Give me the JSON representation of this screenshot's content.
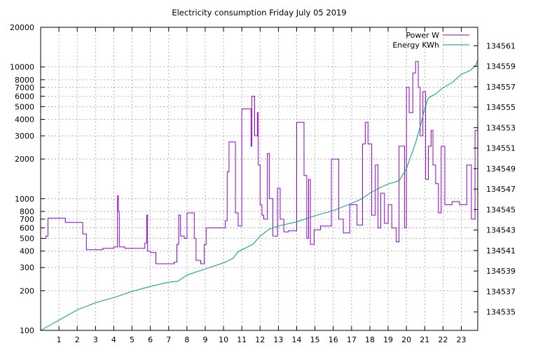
{
  "chart_data": {
    "type": "line",
    "title": "Electricity consumption Friday July 05 2019",
    "xlabel": "",
    "ylabel": "",
    "y2label": "",
    "x_ticks": [
      "1",
      "2",
      "3",
      "4",
      "5",
      "6",
      "7",
      "8",
      "9",
      "10",
      "11",
      "12",
      "13",
      "14",
      "15",
      "16",
      "17",
      "18",
      "19",
      "20",
      "21",
      "22",
      "23"
    ],
    "xlim": [
      0,
      23.9
    ],
    "y_scale": "log",
    "y_ticks": [
      "100",
      "200",
      "300",
      "400",
      "500",
      "600",
      "700",
      "800",
      "1000",
      "2000",
      "3000",
      "4000",
      "5000",
      "6000",
      "7000",
      "8000",
      "10000",
      "20000"
    ],
    "ylim": [
      100,
      20000
    ],
    "y2_ticks": [
      "134535",
      "134537",
      "134539",
      "134541",
      "134543",
      "134545",
      "134547",
      "134549",
      "134551",
      "134553",
      "134555",
      "134557",
      "134559",
      "134561"
    ],
    "y2lim": [
      134533.2,
      134562.8
    ],
    "grid": true,
    "legend_position": "top-right",
    "series": [
      {
        "name": "Power W",
        "axis": "y",
        "color": "#9400d3",
        "x": [
          0,
          0.3,
          0.3,
          0.4,
          0.4,
          1.35,
          1.35,
          2.3,
          2.3,
          2.5,
          2.5,
          3.4,
          3.4,
          4.0,
          4.0,
          4.2,
          4.2,
          4.25,
          4.25,
          4.3,
          4.3,
          4.6,
          4.6,
          5.7,
          5.7,
          5.8,
          5.8,
          5.85,
          5.85,
          6.0,
          6.0,
          6.3,
          6.3,
          7.3,
          7.3,
          7.45,
          7.45,
          7.55,
          7.55,
          7.65,
          7.65,
          7.85,
          7.85,
          8.0,
          8.0,
          8.4,
          8.4,
          8.5,
          8.5,
          8.75,
          8.75,
          8.95,
          8.95,
          9.05,
          9.05,
          10.1,
          10.1,
          10.2,
          10.2,
          10.3,
          10.3,
          10.65,
          10.65,
          10.8,
          10.8,
          11.0,
          11.0,
          11.5,
          11.5,
          11.55,
          11.55,
          11.7,
          11.7,
          11.85,
          11.85,
          11.9,
          11.9,
          12.0,
          12.0,
          12.1,
          12.1,
          12.2,
          12.2,
          12.4,
          12.4,
          12.5,
          12.5,
          12.7,
          12.7,
          12.95,
          12.95,
          13.1,
          13.1,
          13.3,
          13.3,
          13.55,
          13.55,
          14.0,
          14.0,
          14.4,
          14.4,
          14.55,
          14.55,
          14.65,
          14.65,
          14.75,
          14.75,
          14.95,
          14.95,
          15.3,
          15.3,
          15.5,
          15.5,
          15.9,
          15.9,
          16.3,
          16.3,
          16.55,
          16.55,
          16.9,
          16.9,
          17.3,
          17.3,
          17.6,
          17.6,
          17.75,
          17.75,
          17.9,
          17.9,
          18.1,
          18.1,
          18.3,
          18.3,
          18.45,
          18.45,
          18.6,
          18.6,
          18.8,
          18.8,
          19.0,
          19.0,
          19.2,
          19.2,
          19.45,
          19.45,
          19.6,
          19.6,
          19.9,
          19.9,
          20.0,
          20.0,
          20.15,
          20.15,
          20.35,
          20.35,
          20.5,
          20.5,
          20.65,
          20.65,
          20.75,
          20.75,
          20.9,
          20.9,
          21.05,
          21.05,
          21.2,
          21.2,
          21.35,
          21.35,
          21.45,
          21.45,
          21.6,
          21.6,
          21.75,
          21.75,
          21.9,
          21.9,
          22.1,
          22.1,
          22.5,
          22.5,
          22.9,
          22.9,
          23.3,
          23.3,
          23.55,
          23.55,
          23.75,
          23.75,
          23.9
        ],
        "values": [
          500,
          500,
          520,
          520,
          710,
          710,
          660,
          660,
          540,
          540,
          410,
          410,
          420,
          420,
          430,
          430,
          1050,
          1050,
          800,
          800,
          430,
          430,
          420,
          420,
          460,
          460,
          750,
          750,
          400,
          400,
          390,
          390,
          320,
          320,
          330,
          330,
          450,
          450,
          750,
          750,
          520,
          520,
          500,
          500,
          780,
          780,
          500,
          500,
          340,
          340,
          320,
          320,
          450,
          450,
          600,
          600,
          680,
          680,
          1600,
          1600,
          2700,
          2700,
          780,
          780,
          620,
          620,
          4800,
          4800,
          2500,
          2500,
          6000,
          6000,
          3000,
          3000,
          4500,
          4500,
          1800,
          1800,
          900,
          900,
          750,
          750,
          700,
          700,
          2200,
          2200,
          1000,
          1000,
          520,
          520,
          1200,
          1200,
          700,
          700,
          560,
          560,
          570,
          570,
          3800,
          3800,
          1500,
          1500,
          500,
          500,
          1400,
          1400,
          450,
          450,
          580,
          580,
          620,
          620,
          620,
          620,
          2000,
          2000,
          700,
          700,
          550,
          550,
          900,
          900,
          630,
          630,
          2600,
          2600,
          3800,
          3800,
          2600,
          2600,
          750,
          750,
          1800,
          1800,
          600,
          600,
          1100,
          1100,
          650,
          650,
          900,
          900,
          600,
          600,
          470,
          470,
          2500,
          2500,
          600,
          600,
          7000,
          7000,
          4500,
          4500,
          9000,
          9000,
          11000,
          11000,
          7000,
          7000,
          3000,
          3000,
          6500,
          6500,
          1400,
          1400,
          2500,
          2500,
          3300,
          3300,
          1800,
          1800,
          1300,
          1300,
          780,
          780,
          2500,
          2500,
          900,
          900,
          950,
          950,
          900,
          900,
          1800,
          1800,
          700,
          700,
          3300,
          3300
        ]
      },
      {
        "name": "Energy KWh",
        "axis": "y2",
        "color": "#009e73",
        "x": [
          0,
          1,
          2,
          3,
          4,
          5,
          6,
          7,
          7.5,
          8,
          9,
          10,
          10.5,
          10.8,
          11.6,
          12,
          12.5,
          13,
          14,
          15,
          16,
          17,
          17.5,
          18,
          18.5,
          19,
          19.6,
          20,
          20.5,
          20.8,
          21,
          21.2,
          21.6,
          22,
          22.5,
          23,
          23.5,
          23.8,
          23.9
        ],
        "values": [
          134533.2,
          134534.2,
          134535.2,
          134535.9,
          134536.4,
          134537.0,
          134537.5,
          134537.9,
          134538.0,
          134538.6,
          134539.2,
          134539.8,
          134540.2,
          134540.9,
          134541.6,
          134542.4,
          134543.1,
          134543.4,
          134543.8,
          134544.4,
          134544.9,
          134545.6,
          134546.0,
          134546.6,
          134547.1,
          134547.5,
          134547.8,
          134549.0,
          134551.5,
          134553.4,
          134554.9,
          134555.9,
          134556.3,
          134556.9,
          134557.4,
          134558.2,
          134558.6,
          134559.1,
          134559.6
        ]
      }
    ]
  }
}
